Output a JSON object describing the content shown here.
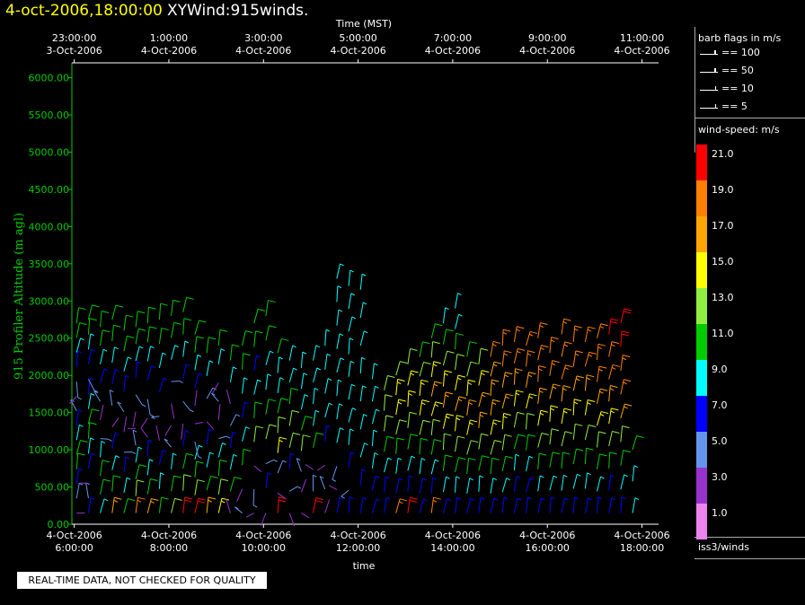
{
  "header": {
    "date_time": "4-oct-2006,18:00:00",
    "product": "XYWind:915winds."
  },
  "chart_data": {
    "type": "scatter",
    "plot_kind": "wind barbs",
    "title": "4-oct-2006,18:00:00 XYWind:915winds.",
    "xlabel": "time",
    "x2label": "Time (MST)",
    "ylabel": "915 Profiler Altitude (m agl)",
    "ylim": [
      0,
      6200
    ],
    "y_ticks": [
      "0.00",
      "500.00",
      "1000.00",
      "1500.00",
      "2000.00",
      "2500.00",
      "3000.00",
      "3500.00",
      "4000.00",
      "4500.00",
      "5000.00",
      "5500.00",
      "6000.00"
    ],
    "x_ticks_bottom": [
      {
        "date": "4-Oct-2006",
        "time": "6:00:00"
      },
      {
        "date": "4-Oct-2006",
        "time": "8:00:00"
      },
      {
        "date": "4-Oct-2006",
        "time": "10:00:00"
      },
      {
        "date": "4-Oct-2006",
        "time": "12:00:00"
      },
      {
        "date": "4-Oct-2006",
        "time": "14:00:00"
      },
      {
        "date": "4-Oct-2006",
        "time": "16:00:00"
      },
      {
        "date": "4-Oct-2006",
        "time": "18:00:00"
      }
    ],
    "x_ticks_top": [
      {
        "time": "23:00:00",
        "date": "3-Oct-2006"
      },
      {
        "time": "1:00:00",
        "date": "4-Oct-2006"
      },
      {
        "time": "3:00:00",
        "date": "4-Oct-2006"
      },
      {
        "time": "5:00:00",
        "date": "4-Oct-2006"
      },
      {
        "time": "7:00:00",
        "date": "4-Oct-2006"
      },
      {
        "time": "9:00:00",
        "date": "4-Oct-2006"
      },
      {
        "time": "11:00:00",
        "date": "4-Oct-2006"
      }
    ],
    "xlim_hours": [
      5.95,
      18.35
    ],
    "profiles": [
      {
        "t": 6.05,
        "top": 2700,
        "speeds": [
          3,
          5,
          7,
          11,
          11,
          9,
          7,
          5,
          3,
          5,
          7,
          9,
          11,
          11
        ]
      },
      {
        "t": 6.3,
        "top": 2750,
        "speeds": [
          7,
          5,
          3,
          7,
          9,
          11,
          11,
          9,
          7,
          5,
          7,
          9,
          11,
          11
        ]
      },
      {
        "t": 6.55,
        "top": 2650,
        "speeds": [
          9,
          11,
          11,
          9,
          5,
          3,
          5,
          7,
          9,
          11,
          11
        ]
      },
      {
        "t": 6.8,
        "top": 2750,
        "speeds": [
          17,
          11,
          9,
          7,
          3,
          5,
          7,
          9,
          11,
          11
        ]
      },
      {
        "t": 7.05,
        "top": 2600,
        "speeds": [
          11,
          9,
          7,
          5,
          3,
          5,
          7,
          9,
          11,
          11
        ]
      },
      {
        "t": 7.3,
        "top": 2650,
        "speeds": [
          19,
          13,
          11,
          9,
          5,
          3,
          3,
          5,
          7,
          9,
          11,
          11
        ]
      },
      {
        "t": 7.55,
        "top": 2700,
        "speeds": [
          17,
          11,
          9,
          7,
          3,
          3,
          5,
          7,
          9,
          11,
          11
        ]
      },
      {
        "t": 7.8,
        "top": 2750,
        "speeds": [
          11,
          9,
          7,
          3,
          5,
          7,
          9,
          11,
          11
        ]
      },
      {
        "t": 8.05,
        "top": 2800,
        "speeds": [
          13,
          11,
          9,
          5,
          3,
          3,
          5,
          9,
          11,
          11
        ]
      },
      {
        "t": 8.3,
        "top": 2850,
        "speeds": [
          21,
          13,
          11,
          7,
          3,
          5,
          7,
          9,
          11,
          11
        ]
      },
      {
        "t": 8.55,
        "top": 2550,
        "speeds": [
          21,
          13,
          11,
          9,
          5,
          3,
          3,
          7,
          9,
          11,
          11
        ]
      },
      {
        "t": 8.8,
        "top": 2300,
        "speeds": [
          17,
          11,
          9,
          7,
          3,
          5,
          9,
          11
        ]
      },
      {
        "t": 9.05,
        "top": 2400,
        "speeds": [
          15,
          13,
          11,
          9,
          5,
          3,
          5,
          3,
          9,
          11
        ]
      },
      {
        "t": 9.3,
        "top": 2200,
        "speeds": [
          3,
          11,
          9,
          7,
          5,
          3,
          9,
          11
        ]
      },
      {
        "t": 9.55,
        "top": 2400,
        "speeds": [
          5,
          3,
          11,
          9,
          7,
          9,
          11,
          11
        ]
      },
      {
        "t": 9.8,
        "top": 2700,
        "speeds": [
          3,
          5,
          3,
          13,
          11,
          9,
          7,
          11,
          11
        ]
      },
      {
        "t": 10.05,
        "top": 2800,
        "speeds": [
          3,
          7,
          5,
          13,
          11,
          9,
          9,
          11,
          11
        ]
      },
      {
        "t": 10.3,
        "top": 2300,
        "speeds": [
          21,
          3,
          5,
          15,
          13,
          11,
          9,
          9,
          11
        ]
      },
      {
        "t": 10.55,
        "top": 2200,
        "speeds": [
          3,
          5,
          7,
          13,
          13,
          11,
          9,
          9
        ]
      },
      {
        "t": 10.8,
        "top": 2100,
        "speeds": [
          3,
          3,
          5,
          13,
          11,
          9,
          9,
          9
        ]
      },
      {
        "t": 11.05,
        "top": 2200,
        "speeds": [
          21,
          5,
          3,
          11,
          9,
          9,
          9,
          9
        ]
      },
      {
        "t": 11.3,
        "top": 2400,
        "speeds": [
          3,
          5,
          3,
          7,
          9,
          9,
          9,
          9
        ]
      },
      {
        "t": 11.55,
        "top": 3300,
        "speeds": [
          7,
          3,
          5,
          9,
          9,
          9,
          9,
          9,
          9,
          9,
          9
        ]
      },
      {
        "t": 11.8,
        "top": 3200,
        "speeds": [
          7,
          5,
          7,
          9,
          9,
          9,
          9,
          9,
          9,
          9,
          9
        ]
      },
      {
        "t": 12.05,
        "top": 3150,
        "speeds": [
          7,
          7,
          9,
          9,
          9,
          9,
          9,
          9,
          9
        ]
      },
      {
        "t": 12.3,
        "top": 1950,
        "speeds": [
          7,
          7,
          9,
          9,
          9,
          9,
          9
        ]
      },
      {
        "t": 12.55,
        "top": 1800,
        "speeds": [
          7,
          7,
          9,
          11,
          13,
          13,
          13
        ]
      },
      {
        "t": 12.8,
        "top": 2000,
        "speeds": [
          19,
          7,
          9,
          11,
          13,
          15,
          15,
          13
        ]
      },
      {
        "t": 13.05,
        "top": 2150,
        "speeds": [
          21,
          7,
          9,
          11,
          13,
          15,
          15,
          13
        ]
      },
      {
        "t": 13.3,
        "top": 2250,
        "speeds": [
          7,
          7,
          9,
          11,
          13,
          15,
          15,
          13,
          11
        ]
      },
      {
        "t": 13.55,
        "top": 2500,
        "speeds": [
          19,
          7,
          9,
          11,
          13,
          15,
          17,
          15,
          13,
          11
        ]
      },
      {
        "t": 13.8,
        "top": 2700,
        "speeds": [
          7,
          9,
          11,
          13,
          15,
          17,
          15,
          13,
          11,
          9
        ]
      },
      {
        "t": 14.05,
        "top": 2900,
        "speeds": [
          7,
          9,
          11,
          13,
          15,
          17,
          15,
          13,
          11,
          9,
          9
        ]
      },
      {
        "t": 14.3,
        "top": 2250,
        "speeds": [
          7,
          9,
          11,
          13,
          15,
          17,
          15,
          13,
          11
        ]
      },
      {
        "t": 14.55,
        "top": 2150,
        "speeds": [
          7,
          9,
          11,
          13,
          17,
          17,
          15,
          13
        ]
      },
      {
        "t": 14.8,
        "top": 2250,
        "speeds": [
          7,
          9,
          11,
          13,
          15,
          17,
          17,
          17,
          19
        ]
      },
      {
        "t": 15.05,
        "top": 2400,
        "speeds": [
          7,
          9,
          11,
          13,
          15,
          17,
          17,
          19,
          19
        ]
      },
      {
        "t": 15.3,
        "top": 2450,
        "speeds": [
          7,
          7,
          9,
          11,
          13,
          15,
          17,
          19,
          19
        ]
      },
      {
        "t": 15.55,
        "top": 2400,
        "speeds": [
          7,
          7,
          9,
          11,
          13,
          15,
          17,
          19,
          19
        ]
      },
      {
        "t": 15.8,
        "top": 2500,
        "speeds": [
          7,
          9,
          11,
          13,
          15,
          17,
          19,
          19,
          19
        ]
      },
      {
        "t": 16.05,
        "top": 2300,
        "speeds": [
          7,
          9,
          11,
          13,
          15,
          17,
          19,
          19
        ]
      },
      {
        "t": 16.3,
        "top": 2550,
        "speeds": [
          7,
          9,
          11,
          13,
          15,
          17,
          19,
          19,
          19
        ]
      },
      {
        "t": 16.55,
        "top": 2450,
        "speeds": [
          7,
          9,
          11,
          13,
          15,
          17,
          19,
          19
        ]
      },
      {
        "t": 16.8,
        "top": 2450,
        "speeds": [
          7,
          9,
          11,
          13,
          15,
          17,
          19,
          19
        ]
      },
      {
        "t": 17.05,
        "top": 2500,
        "speeds": [
          7,
          9,
          11,
          13,
          15,
          17,
          19,
          19,
          19
        ]
      },
      {
        "t": 17.3,
        "top": 2550,
        "speeds": [
          7,
          7,
          11,
          13,
          15,
          17,
          19,
          19,
          21
        ]
      },
      {
        "t": 17.55,
        "top": 2700,
        "speeds": [
          7,
          9,
          11,
          13,
          17,
          19,
          19,
          21,
          21
        ]
      },
      {
        "t": 17.8,
        "top": 1000,
        "speeds": [
          9,
          9,
          11
        ]
      }
    ],
    "grid": false,
    "legend_position": "right"
  },
  "legend": {
    "flags_title": "barb flags in m/s",
    "flags": [
      {
        "value": 100,
        "label": "== 100"
      },
      {
        "value": 50,
        "label": "== 50"
      },
      {
        "value": 10,
        "label": "== 10"
      },
      {
        "value": 5,
        "label": "== 5"
      }
    ],
    "speed_title": "wind-speed: m/s",
    "speed_scale": [
      {
        "label": "21.0",
        "color": "#ff0000"
      },
      {
        "label": "19.0",
        "color": "#ff7f00"
      },
      {
        "label": "17.0",
        "color": "#ffa500"
      },
      {
        "label": "15.0",
        "color": "#ffff00"
      },
      {
        "label": "13.0",
        "color": "#90ee40"
      },
      {
        "label": "11.0",
        "color": "#00cc00"
      },
      {
        "label": "9.0",
        "color": "#00ffff"
      },
      {
        "label": "7.0",
        "color": "#0000ff"
      },
      {
        "label": "5.0",
        "color": "#6495ed"
      },
      {
        "label": "3.0",
        "color": "#9932cc"
      },
      {
        "label": "1.0",
        "color": "#ee82ee"
      }
    ],
    "source": "iss3/winds"
  },
  "notice": "REAL-TIME DATA, NOT CHECKED FOR QUALITY"
}
